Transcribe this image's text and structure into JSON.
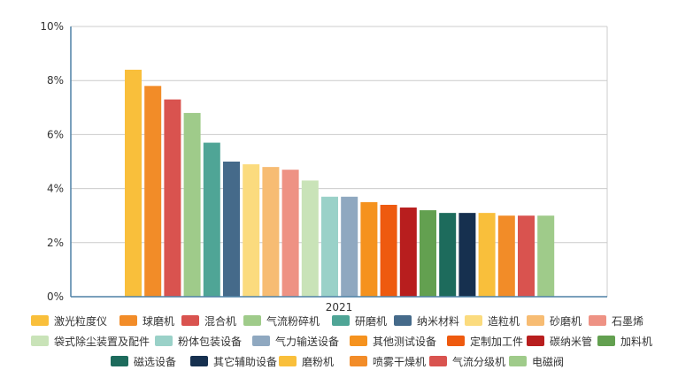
{
  "chart_data": {
    "type": "bar",
    "title": "",
    "xlabel": "",
    "ylabel": "",
    "categories": [
      "2021"
    ],
    "ylim": [
      0,
      10
    ],
    "yticks": [
      "0%",
      "2%",
      "4%",
      "6%",
      "8%",
      "10%"
    ],
    "grid": true,
    "legend_position": "bottom",
    "series": [
      {
        "name": "激光粒度仪",
        "values": [
          8.4
        ],
        "color": "#F9BF3B"
      },
      {
        "name": "球磨机",
        "values": [
          7.8
        ],
        "color": "#F28C28"
      },
      {
        "name": "混合机",
        "values": [
          7.3
        ],
        "color": "#D9534F"
      },
      {
        "name": "气流粉碎机",
        "values": [
          6.8
        ],
        "color": "#9FCB8A"
      },
      {
        "name": "研磨机",
        "values": [
          5.7
        ],
        "color": "#4FA596"
      },
      {
        "name": "纳米材料",
        "values": [
          5.0
        ],
        "color": "#456A8A"
      },
      {
        "name": "造粒机",
        "values": [
          4.9
        ],
        "color": "#FBDB7E"
      },
      {
        "name": "砂磨机",
        "values": [
          4.8
        ],
        "color": "#F7BC73"
      },
      {
        "name": "石墨烯",
        "values": [
          4.7
        ],
        "color": "#EE9284"
      },
      {
        "name": "袋式除尘装置及配件",
        "values": [
          4.3
        ],
        "color": "#C9E3B8"
      },
      {
        "name": "粉体包装设备",
        "values": [
          3.7
        ],
        "color": "#9AD1C8"
      },
      {
        "name": "气力输送设备",
        "values": [
          3.7
        ],
        "color": "#8FA8C0"
      },
      {
        "name": "其他测试设备",
        "values": [
          3.5
        ],
        "color": "#F5921E"
      },
      {
        "name": "定制加工件",
        "values": [
          3.4
        ],
        "color": "#EE5A0F"
      },
      {
        "name": "碳纳米管",
        "values": [
          3.3
        ],
        "color": "#B81E1E"
      },
      {
        "name": "加料机",
        "values": [
          3.2
        ],
        "color": "#63A050"
      },
      {
        "name": "磁选设备",
        "values": [
          3.1
        ],
        "color": "#1D6B5C"
      },
      {
        "name": "其它辅助设备",
        "values": [
          3.1
        ],
        "color": "#16304F"
      },
      {
        "name": "磨粉机",
        "values": [
          3.1
        ],
        "color": "#F9BF3B"
      },
      {
        "name": "喷雾干燥机",
        "values": [
          3.0
        ],
        "color": "#F28C28"
      },
      {
        "name": "气流分级机",
        "values": [
          3.0
        ],
        "color": "#D9534F"
      },
      {
        "name": "电磁阀",
        "values": [
          3.0
        ],
        "color": "#9FCB8A"
      }
    ]
  }
}
